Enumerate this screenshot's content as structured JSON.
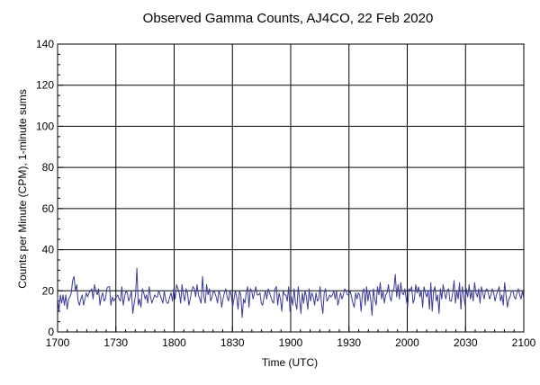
{
  "chart_data": {
    "type": "line",
    "title": "Observed Gamma Counts, AJ4CO, 22 Feb 2020",
    "xlabel": "Time (UTC)",
    "ylabel": "Counts per Minute (CPM), 1-minute sums",
    "x_tick_labels": [
      "1700",
      "1730",
      "1800",
      "1830",
      "1900",
      "1930",
      "2000",
      "2030",
      "2100"
    ],
    "y_tick_labels": [
      "0",
      "20",
      "40",
      "60",
      "80",
      "100",
      "120",
      "140"
    ],
    "xlim_minutes": [
      0,
      240
    ],
    "ylim": [
      0,
      140
    ],
    "grid": true,
    "line_color": "#3a3a9a",
    "series": [
      {
        "values": [
          17,
          10,
          18,
          14,
          18,
          13,
          18,
          11,
          16,
          17,
          19,
          25,
          27,
          20,
          23,
          15,
          13,
          16,
          18,
          13,
          16,
          19,
          17,
          19,
          20,
          21,
          16,
          23,
          20,
          18,
          21,
          13,
          17,
          19,
          15,
          16,
          21,
          22,
          22,
          13,
          17,
          15,
          16,
          17,
          18,
          16,
          15,
          22,
          13,
          17,
          20,
          19,
          15,
          17,
          20,
          9,
          14,
          18,
          31,
          13,
          16,
          12,
          21,
          19,
          16,
          18,
          14,
          22,
          17,
          14,
          16,
          18,
          17,
          17,
          20,
          18,
          16,
          14,
          20,
          16,
          14,
          14,
          17,
          19,
          15,
          21,
          16,
          23,
          21,
          19,
          14,
          23,
          18,
          15,
          21,
          19,
          13,
          16,
          20,
          22,
          21,
          17,
          23,
          18,
          16,
          14,
          27,
          17,
          14,
          23,
          18,
          21,
          15,
          17,
          20,
          19,
          17,
          14,
          20,
          18,
          12,
          16,
          19,
          21,
          17,
          15,
          20,
          18,
          12,
          16,
          20,
          17,
          11,
          20,
          18,
          7,
          16,
          14,
          19,
          22,
          12,
          21,
          20,
          16,
          19,
          22,
          18,
          18,
          19,
          14,
          13,
          17,
          20,
          16,
          21,
          19,
          17,
          15,
          14,
          21,
          22,
          13,
          19,
          16,
          10,
          20,
          18,
          18,
          15,
          22,
          10,
          17,
          13,
          21,
          14,
          11,
          22,
          16,
          9,
          19,
          14,
          20,
          17,
          11,
          21,
          15,
          19,
          17,
          13,
          19,
          15,
          16,
          22,
          14,
          9,
          19,
          21,
          15,
          16,
          18,
          17,
          18,
          20,
          16,
          20,
          13,
          16,
          19,
          16,
          18,
          21,
          20,
          18,
          18,
          20,
          17,
          14,
          12,
          19,
          16,
          19,
          18,
          10,
          19,
          21,
          13,
          22,
          15,
          20,
          16,
          8,
          21,
          16,
          13,
          22,
          18,
          24,
          16,
          20,
          14,
          18,
          19,
          23,
          17,
          15,
          20,
          21,
          28,
          17,
          23,
          16,
          24,
          19,
          18,
          21,
          16,
          12,
          21,
          20,
          22,
          14,
          16,
          23,
          19,
          22,
          17,
          20,
          12,
          22,
          19,
          17,
          20,
          11,
          24,
          10,
          20,
          22,
          15,
          18,
          9,
          21,
          16,
          23,
          19,
          16,
          20,
          21,
          15,
          15,
          19,
          25,
          14,
          20,
          16,
          24,
          11,
          22,
          18,
          13,
          21,
          17,
          23,
          16,
          20,
          15,
          24,
          19,
          17,
          21,
          14,
          22,
          19,
          16,
          20,
          21,
          19,
          16,
          18,
          21,
          19,
          15,
          18,
          20,
          22,
          15,
          18,
          13,
          24,
          18,
          12,
          16,
          17,
          20,
          20,
          17,
          16,
          19,
          21,
          18,
          16,
          20,
          16
        ]
      }
    ]
  }
}
